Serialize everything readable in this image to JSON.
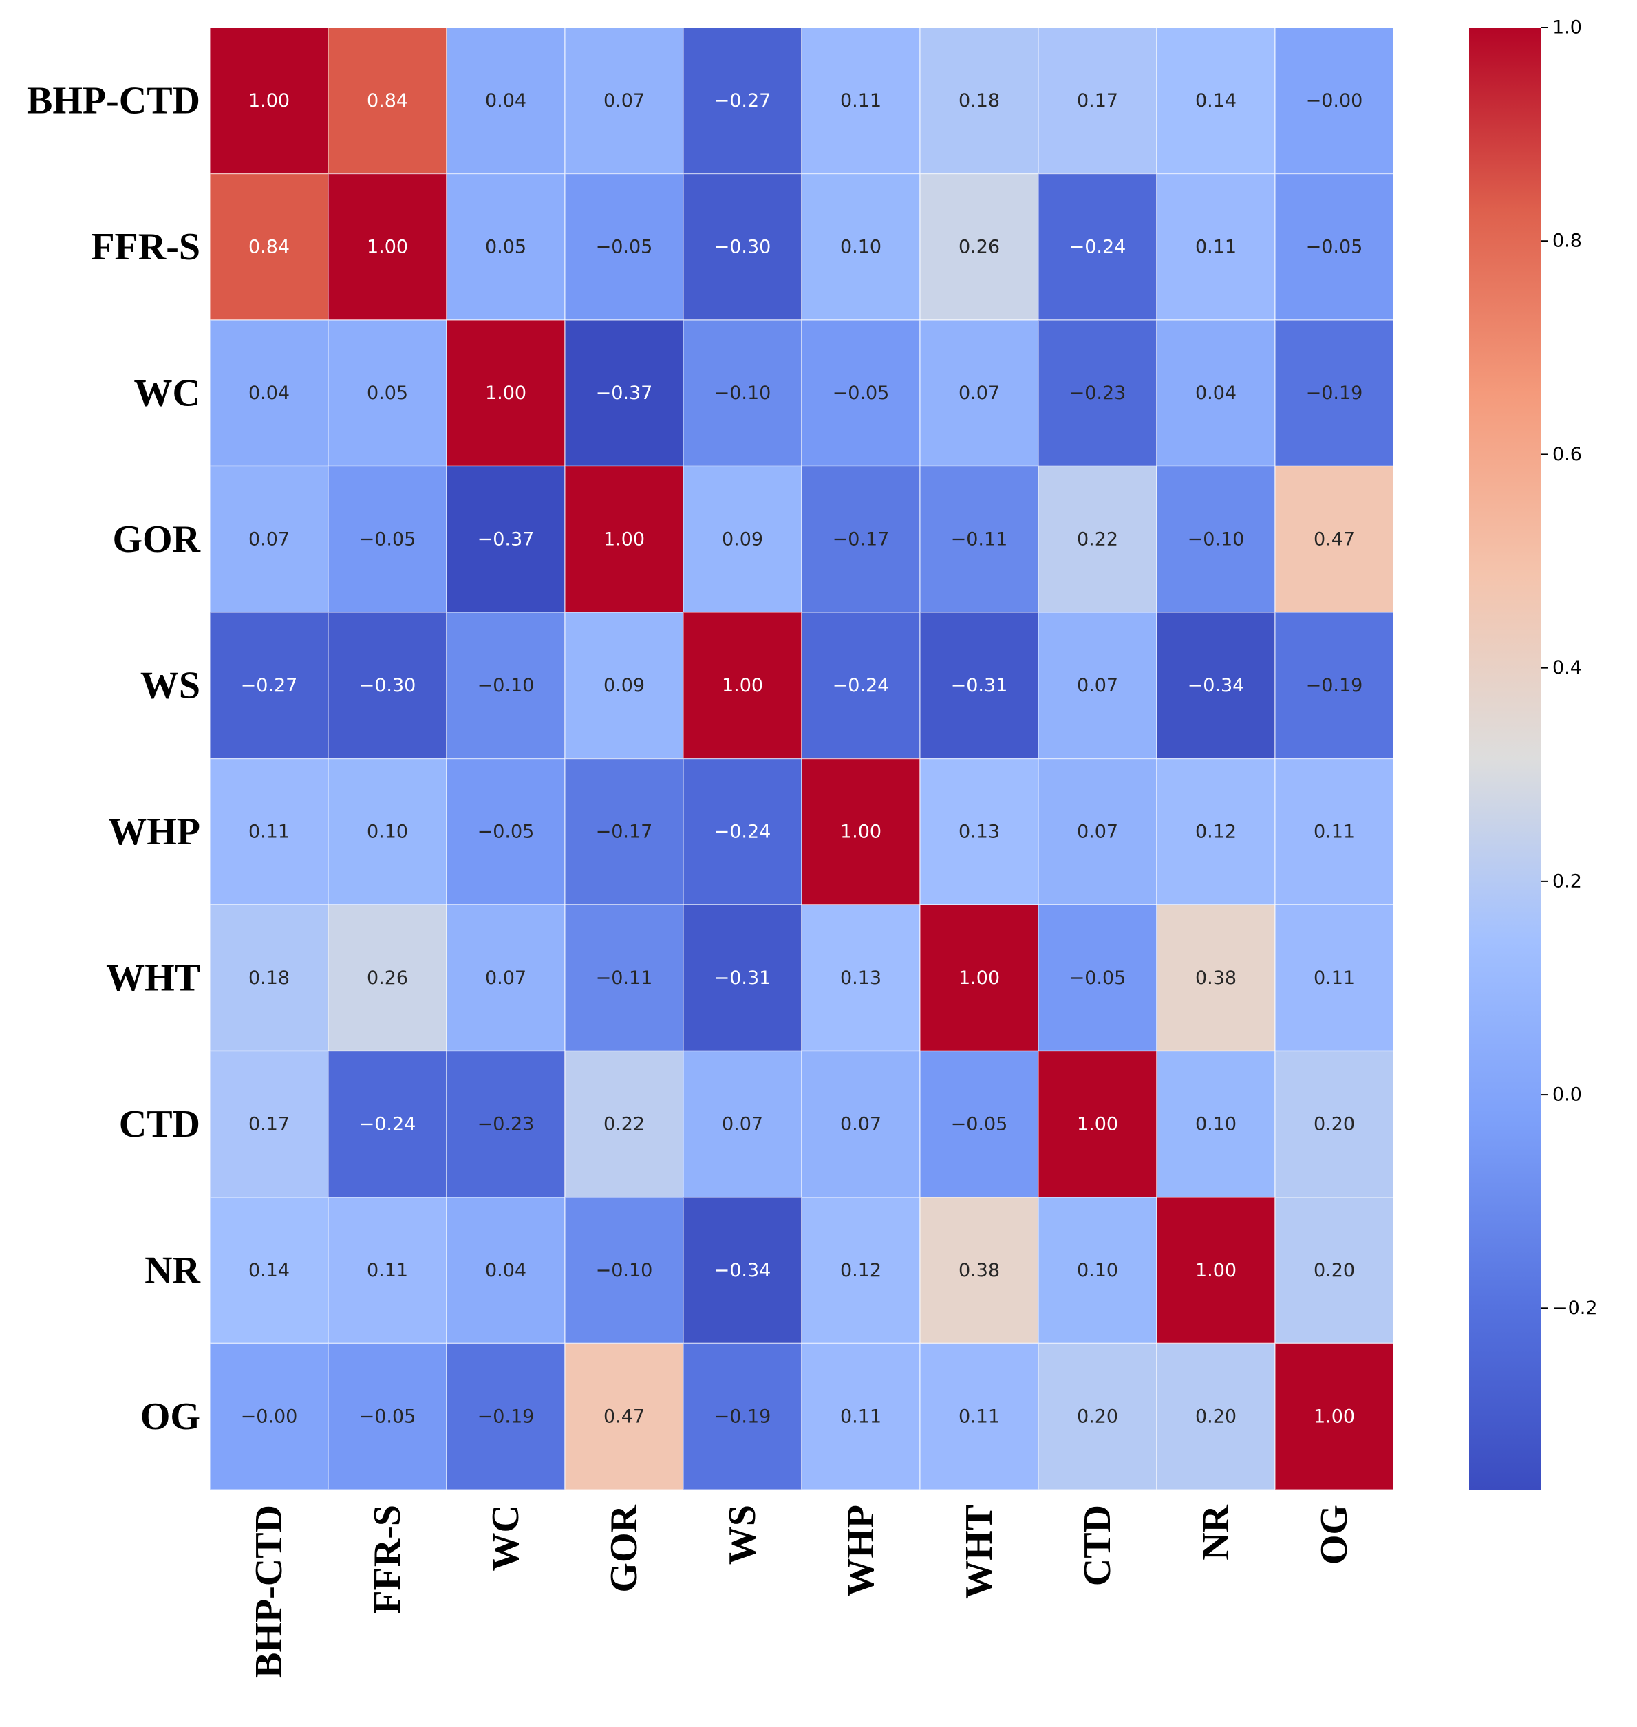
{
  "chart_data": {
    "type": "heatmap",
    "title": "",
    "xlabel": "",
    "ylabel": "",
    "labels": [
      "BHP-CTD",
      "FFR-S",
      "WC",
      "GOR",
      "WS",
      "WHP",
      "WHT",
      "CTD",
      "NR",
      "OG"
    ],
    "matrix": [
      [
        1.0,
        0.84,
        0.04,
        0.07,
        -0.27,
        0.11,
        0.18,
        0.17,
        0.14,
        -0.0
      ],
      [
        0.84,
        1.0,
        0.05,
        -0.05,
        -0.3,
        0.1,
        0.26,
        -0.24,
        0.11,
        -0.05
      ],
      [
        0.04,
        0.05,
        1.0,
        -0.37,
        -0.1,
        -0.05,
        0.07,
        -0.23,
        0.04,
        -0.19
      ],
      [
        0.07,
        -0.05,
        -0.37,
        1.0,
        0.09,
        -0.17,
        -0.11,
        0.22,
        -0.1,
        0.47
      ],
      [
        -0.27,
        -0.3,
        -0.1,
        0.09,
        1.0,
        -0.24,
        -0.31,
        0.07,
        -0.34,
        -0.19
      ],
      [
        0.11,
        0.1,
        -0.05,
        -0.17,
        -0.24,
        1.0,
        0.13,
        0.07,
        0.12,
        0.11
      ],
      [
        0.18,
        0.26,
        0.07,
        -0.11,
        -0.31,
        0.13,
        1.0,
        -0.05,
        0.38,
        0.11
      ],
      [
        0.17,
        -0.24,
        -0.23,
        0.22,
        0.07,
        0.07,
        -0.05,
        1.0,
        0.1,
        0.2
      ],
      [
        0.14,
        0.11,
        0.04,
        -0.1,
        -0.34,
        0.12,
        0.38,
        0.1,
        1.0,
        0.2
      ],
      [
        -0.0,
        -0.05,
        -0.19,
        0.47,
        -0.19,
        0.11,
        0.11,
        0.2,
        0.2,
        1.0
      ]
    ],
    "cell_text": [
      [
        "1.00",
        "0.84",
        "0.04",
        "0.07",
        "−0.27",
        "0.11",
        "0.18",
        "0.17",
        "0.14",
        "−0.00"
      ],
      [
        "0.84",
        "1.00",
        "0.05",
        "−0.05",
        "−0.30",
        "0.10",
        "0.26",
        "−0.24",
        "0.11",
        "−0.05"
      ],
      [
        "0.04",
        "0.05",
        "1.00",
        "−0.37",
        "−0.10",
        "−0.05",
        "0.07",
        "−0.23",
        "0.04",
        "−0.19"
      ],
      [
        "0.07",
        "−0.05",
        "−0.37",
        "1.00",
        "0.09",
        "−0.17",
        "−0.11",
        "0.22",
        "−0.10",
        "0.47"
      ],
      [
        "−0.27",
        "−0.30",
        "−0.10",
        "0.09",
        "1.00",
        "−0.24",
        "−0.31",
        "0.07",
        "−0.34",
        "−0.19"
      ],
      [
        "0.11",
        "0.10",
        "−0.05",
        "−0.17",
        "−0.24",
        "1.00",
        "0.13",
        "0.07",
        "0.12",
        "0.11"
      ],
      [
        "0.18",
        "0.26",
        "0.07",
        "−0.11",
        "−0.31",
        "0.13",
        "1.00",
        "−0.05",
        "0.38",
        "0.11"
      ],
      [
        "0.17",
        "−0.24",
        "−0.23",
        "0.22",
        "0.07",
        "0.07",
        "−0.05",
        "1.00",
        "0.10",
        "0.20"
      ],
      [
        "0.14",
        "0.11",
        "0.04",
        "−0.10",
        "−0.34",
        "0.12",
        "0.38",
        "0.10",
        "1.00",
        "0.20"
      ],
      [
        "−0.00",
        "−0.05",
        "−0.19",
        "0.47",
        "−0.19",
        "0.11",
        "0.11",
        "0.20",
        "0.20",
        "1.00"
      ]
    ],
    "colormap": "coolwarm",
    "vmin": -0.37,
    "vmax": 1.0,
    "colorbar": {
      "ticks": [
        1.0,
        0.8,
        0.6,
        0.4,
        0.2,
        0.0,
        -0.2
      ],
      "tick_labels": [
        "1.0",
        "0.8",
        "0.6",
        "0.4",
        "0.2",
        "0.0",
        "−0.2"
      ],
      "position": "right"
    },
    "grid": false
  }
}
